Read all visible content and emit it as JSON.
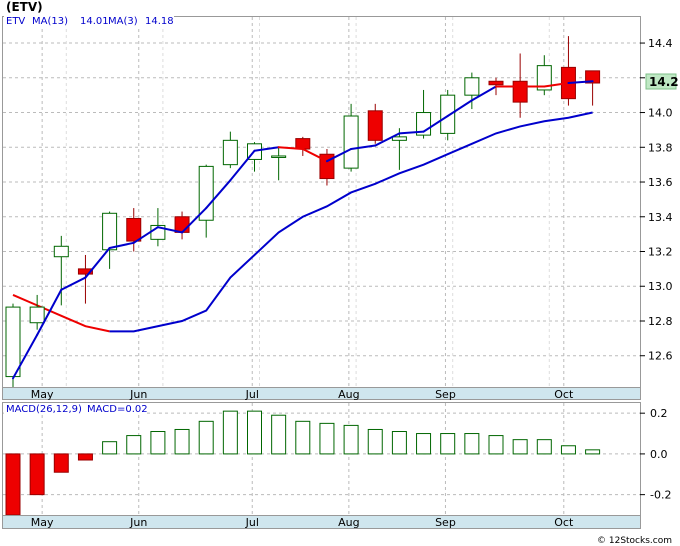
{
  "chart_data": [
    {
      "type": "candlestick",
      "title": "(ETV)",
      "symbol_label": "ETV",
      "indicators": [
        {
          "name": "MA(13)",
          "value": "14.01",
          "color": "#0000cc"
        },
        {
          "name": "MA(3)",
          "value": "14.18",
          "color": "#0000cc"
        }
      ],
      "last_price_label": "14.2",
      "last_price": 14.2,
      "ylim": [
        12.42,
        14.55
      ],
      "yticks": [
        12.6,
        12.8,
        13.0,
        13.2,
        13.4,
        13.6,
        13.8,
        14.0,
        14.2,
        14.4
      ],
      "ytick_labels": [
        "12.6",
        "12.8",
        "13.0",
        "13.2",
        "13.4",
        "13.6",
        "13.8",
        "14.0",
        "14.2",
        "14.4"
      ],
      "month_ticks": [
        {
          "label": "May",
          "week": 1.0
        },
        {
          "label": "Jun",
          "week": 5.0
        },
        {
          "label": "Jul",
          "week": 9.7
        },
        {
          "label": "Aug",
          "week": 13.7
        },
        {
          "label": "Sep",
          "week": 17.7
        },
        {
          "label": "Oct",
          "week": 22.6
        }
      ],
      "grid": true,
      "up_color": "#ffffff",
      "down_color": "#ee0000",
      "candles": [
        {
          "open": 12.48,
          "high": 12.9,
          "low": 12.42,
          "close": 12.88
        },
        {
          "open": 12.79,
          "high": 12.95,
          "low": 12.75,
          "close": 12.88
        },
        {
          "open": 13.17,
          "high": 13.29,
          "low": 12.89,
          "close": 13.23
        },
        {
          "open": 13.1,
          "high": 13.18,
          "low": 12.9,
          "close": 13.07
        },
        {
          "open": 13.21,
          "high": 13.43,
          "low": 13.1,
          "close": 13.42
        },
        {
          "open": 13.39,
          "high": 13.45,
          "low": 13.2,
          "close": 13.26
        },
        {
          "open": 13.27,
          "high": 13.45,
          "low": 13.23,
          "close": 13.35
        },
        {
          "open": 13.4,
          "high": 13.43,
          "low": 13.27,
          "close": 13.31
        },
        {
          "open": 13.38,
          "high": 13.7,
          "low": 13.28,
          "close": 13.69
        },
        {
          "open": 13.7,
          "high": 13.89,
          "low": 13.68,
          "close": 13.84
        },
        {
          "open": 13.73,
          "high": 13.83,
          "low": 13.66,
          "close": 13.82
        },
        {
          "open": 13.75,
          "high": 13.8,
          "low": 13.61,
          "close": 13.75
        },
        {
          "open": 13.85,
          "high": 13.86,
          "low": 13.75,
          "close": 13.79
        },
        {
          "open": 13.76,
          "high": 13.79,
          "low": 13.58,
          "close": 13.62
        },
        {
          "open": 13.68,
          "high": 14.05,
          "low": 13.66,
          "close": 13.98
        },
        {
          "open": 14.01,
          "high": 14.05,
          "low": 13.82,
          "close": 13.84
        },
        {
          "open": 13.84,
          "high": 13.91,
          "low": 13.67,
          "close": 13.86
        },
        {
          "open": 13.87,
          "high": 14.13,
          "low": 13.85,
          "close": 14.0
        },
        {
          "open": 13.88,
          "high": 14.13,
          "low": 13.84,
          "close": 14.1
        },
        {
          "open": 14.1,
          "high": 14.23,
          "low": 14.02,
          "close": 14.2
        },
        {
          "open": 14.18,
          "high": 14.2,
          "low": 14.1,
          "close": 14.16
        },
        {
          "open": 14.18,
          "high": 14.34,
          "low": 13.97,
          "close": 14.06
        },
        {
          "open": 14.13,
          "high": 14.33,
          "low": 14.1,
          "close": 14.27
        },
        {
          "open": 14.26,
          "high": 14.44,
          "low": 14.04,
          "close": 14.08
        },
        {
          "open": 14.24,
          "high": 14.24,
          "low": 14.04,
          "close": 14.17
        }
      ],
      "ma13": [
        null,
        null,
        null,
        null,
        null,
        null,
        null,
        null,
        null,
        null,
        null,
        null,
        null,
        null,
        null,
        null,
        null,
        null,
        null,
        null,
        null,
        null,
        null,
        null,
        null
      ],
      "ma13_points": [
        {
          "week": 4,
          "value": 12.74
        },
        {
          "week": 5,
          "value": 12.74
        },
        {
          "week": 7,
          "value": 12.8
        },
        {
          "week": 8,
          "value": 12.86
        },
        {
          "week": 9,
          "value": 13.05
        },
        {
          "week": 10,
          "value": 13.18
        },
        {
          "week": 11,
          "value": 13.31
        },
        {
          "week": 12,
          "value": 13.4
        },
        {
          "week": 13,
          "value": 13.46
        },
        {
          "week": 14,
          "value": 13.54
        },
        {
          "week": 15,
          "value": 13.59
        },
        {
          "week": 16,
          "value": 13.65
        },
        {
          "week": 17,
          "value": 13.7
        },
        {
          "week": 18,
          "value": 13.76
        },
        {
          "week": 19,
          "value": 13.82
        },
        {
          "week": 20,
          "value": 13.88
        },
        {
          "week": 21,
          "value": 13.92
        },
        {
          "week": 22,
          "value": 13.95
        },
        {
          "week": 23,
          "value": 13.97
        },
        {
          "week": 24,
          "value": 14.0
        }
      ],
      "ma3_points": [
        {
          "week": 0,
          "value": 12.47
        },
        {
          "week": 1,
          "value": 12.72
        },
        {
          "week": 2,
          "value": 12.98
        },
        {
          "week": 3,
          "value": 13.05
        },
        {
          "week": 4,
          "value": 13.22
        },
        {
          "week": 5,
          "value": 13.25
        },
        {
          "week": 6,
          "value": 13.34
        },
        {
          "week": 7,
          "value": 13.31
        },
        {
          "week": 8,
          "value": 13.45
        },
        {
          "week": 9,
          "value": 13.61
        },
        {
          "week": 10,
          "value": 13.78
        },
        {
          "week": 11,
          "value": 13.8
        },
        {
          "week": 12,
          "value": 13.79
        },
        {
          "week": 13,
          "value": 13.72
        },
        {
          "week": 14,
          "value": 13.79
        },
        {
          "week": 15,
          "value": 13.81
        },
        {
          "week": 16,
          "value": 13.88
        },
        {
          "week": 17,
          "value": 13.89
        },
        {
          "week": 18,
          "value": 13.98
        },
        {
          "week": 19,
          "value": 14.07
        },
        {
          "week": 20,
          "value": 14.15
        },
        {
          "week": 21,
          "value": 14.15
        },
        {
          "week": 22,
          "value": 14.15
        },
        {
          "week": 23,
          "value": 14.17
        },
        {
          "week": 24,
          "value": 14.18
        }
      ],
      "ma3_red_segments": [
        {
          "from": 0,
          "to": 4,
          "type": "ma13_early"
        },
        {
          "from": 11,
          "to": 13
        },
        {
          "from": 20,
          "to": 23
        }
      ],
      "ma13_early_red": [
        {
          "week": 0,
          "value": 12.95
        },
        {
          "week": 1,
          "value": 12.89
        },
        {
          "week": 2,
          "value": 12.83
        },
        {
          "week": 3,
          "value": 12.77
        },
        {
          "week": 4,
          "value": 12.74
        }
      ]
    },
    {
      "type": "bar",
      "title": "MACD(26,12,9)",
      "indicator_label": "MACD(26,12,9)",
      "value_label": "MACD=0.02",
      "ylim": [
        -0.3,
        0.25
      ],
      "yticks": [
        0.2,
        0.0,
        -0.2
      ],
      "ytick_labels": [
        "0.2",
        "0.0",
        "-0.2"
      ],
      "values": [
        -0.3,
        -0.2,
        -0.09,
        -0.03,
        0.06,
        0.09,
        0.11,
        0.12,
        0.16,
        0.21,
        0.21,
        0.19,
        0.16,
        0.15,
        0.14,
        0.12,
        0.11,
        0.1,
        0.1,
        0.1,
        0.09,
        0.07,
        0.07,
        0.04,
        0.02
      ],
      "positive_color": "#ffffff",
      "negative_color": "#ee0000",
      "bar_stroke": "#006600"
    }
  ],
  "watermark": "© 12Stocks.com"
}
